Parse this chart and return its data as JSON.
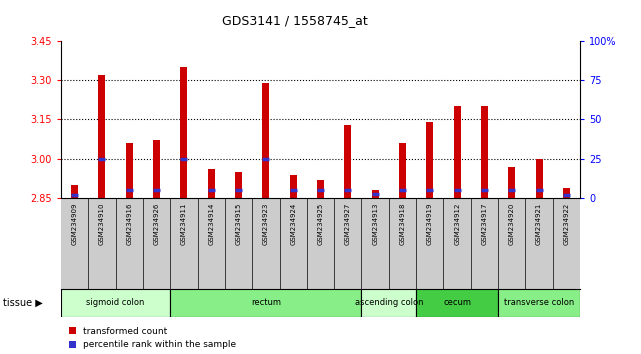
{
  "title": "GDS3141 / 1558745_at",
  "samples": [
    "GSM234909",
    "GSM234910",
    "GSM234916",
    "GSM234926",
    "GSM234911",
    "GSM234914",
    "GSM234915",
    "GSM234923",
    "GSM234924",
    "GSM234925",
    "GSM234927",
    "GSM234913",
    "GSM234918",
    "GSM234919",
    "GSM234912",
    "GSM234917",
    "GSM234920",
    "GSM234921",
    "GSM234922"
  ],
  "transformed_count": [
    2.9,
    3.32,
    3.06,
    3.07,
    3.35,
    2.96,
    2.95,
    3.29,
    2.94,
    2.92,
    3.13,
    2.88,
    3.06,
    3.14,
    3.2,
    3.2,
    2.97,
    3.0,
    2.89
  ],
  "percentile_rank": [
    2,
    25,
    5,
    5,
    25,
    5,
    5,
    25,
    5,
    5,
    5,
    3,
    5,
    5,
    5,
    5,
    5,
    5,
    2
  ],
  "baseline": 2.85,
  "ylim": [
    2.85,
    3.45
  ],
  "yticks_left": [
    2.85,
    3.0,
    3.15,
    3.3,
    3.45
  ],
  "yticks_right": [
    0,
    25,
    50,
    75,
    100
  ],
  "bar_color": "#cc0000",
  "blue_color": "#3333cc",
  "tissues": [
    {
      "label": "sigmoid colon",
      "start": 0,
      "end": 4,
      "color": "#ccffcc"
    },
    {
      "label": "rectum",
      "start": 4,
      "end": 11,
      "color": "#88ee88"
    },
    {
      "label": "ascending colon",
      "start": 11,
      "end": 13,
      "color": "#ccffcc"
    },
    {
      "label": "cecum",
      "start": 13,
      "end": 16,
      "color": "#44cc44"
    },
    {
      "label": "transverse colon",
      "start": 16,
      "end": 19,
      "color": "#88ee88"
    }
  ],
  "legend_items": [
    {
      "label": "transformed count",
      "color": "#cc0000"
    },
    {
      "label": "percentile rank within the sample",
      "color": "#3333cc"
    }
  ],
  "xticklabel_bg": "#cccccc",
  "bar_width": 0.25
}
